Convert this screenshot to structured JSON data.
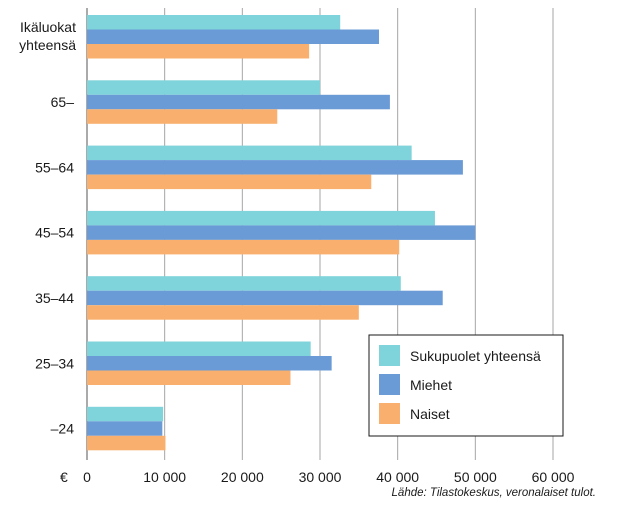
{
  "chart_data": {
    "type": "bar",
    "orientation": "horizontal",
    "currency_label": "€",
    "categories": [
      "Ikäluokat yhteensä",
      "65–",
      "55–64",
      "45–54",
      "35–44",
      "25–34",
      "–24"
    ],
    "series": [
      {
        "name": "Sukupuolet yhteensä",
        "color": "#7fd3da",
        "values": [
          32600,
          30000,
          41800,
          44800,
          40400,
          28800,
          9800
        ]
      },
      {
        "name": "Miehet",
        "color": "#6a9bd6",
        "values": [
          37600,
          39000,
          48400,
          50000,
          45800,
          31500,
          9700
        ]
      },
      {
        "name": "Naiset",
        "color": "#f9b06e",
        "values": [
          28600,
          24500,
          36600,
          40200,
          35000,
          26200,
          10100
        ]
      }
    ],
    "xlim": [
      0,
      60000
    ],
    "xticks": [
      0,
      10000,
      20000,
      30000,
      40000,
      50000,
      60000
    ],
    "xtick_labels": [
      "0",
      "10 000",
      "20 000",
      "30 000",
      "40 000",
      "50 000",
      "60 000"
    ],
    "grid": "vertical",
    "legend_position": "bottom-right"
  },
  "source_note": "Lähde: Tilastokeskus, veronalaiset tulot."
}
